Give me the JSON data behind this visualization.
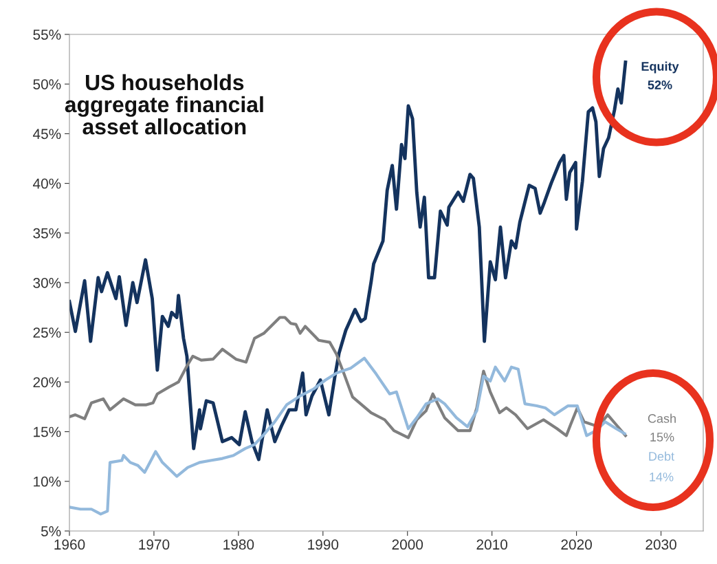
{
  "chart_data": {
    "type": "line",
    "title": "US households\naggregate financial\nasset allocation",
    "xlim": [
      1960,
      2035
    ],
    "xticks": [
      1960,
      1970,
      1980,
      1990,
      2000,
      2010,
      2020,
      2030
    ],
    "ylim": [
      5,
      55
    ],
    "yticks": [
      {
        "value": 5,
        "label": "5%"
      },
      {
        "value": 10,
        "label": "10%"
      },
      {
        "value": 15,
        "label": "15%"
      },
      {
        "value": 20,
        "label": "20%"
      },
      {
        "value": 25,
        "label": "25%"
      },
      {
        "value": 30,
        "label": "30%"
      },
      {
        "value": 35,
        "label": "35%"
      },
      {
        "value": 40,
        "label": "40%"
      },
      {
        "value": 45,
        "label": "45%"
      },
      {
        "value": 50,
        "label": "50%"
      },
      {
        "value": 55,
        "label": "55%"
      }
    ],
    "grid": false,
    "legend": false,
    "marker": "none",
    "line_style": "solid",
    "series": [
      {
        "name": "Equity",
        "color": "#14335e",
        "x": [
          1960.0,
          1960.7,
          1961.8,
          1962.5,
          1963.4,
          1963.8,
          1964.5,
          1965.5,
          1965.9,
          1966.7,
          1967.5,
          1968.0,
          1969.0,
          1969.8,
          1970.4,
          1971.0,
          1971.7,
          1972.1,
          1972.7,
          1972.9,
          1973.5,
          1973.9,
          1974.7,
          1975.4,
          1975.5,
          1976.2,
          1977.0,
          1978.1,
          1979.2,
          1980.1,
          1980.8,
          1981.6,
          1982.4,
          1983.4,
          1984.3,
          1985.1,
          1986.0,
          1986.8,
          1987.6,
          1988.0,
          1988.7,
          1989.7,
          1990.7,
          1991.4,
          1991.9,
          1992.7,
          1993.8,
          1994.5,
          1995.0,
          1995.7,
          1996.0,
          1997.1,
          1997.6,
          1998.2,
          1998.7,
          1999.3,
          1999.7,
          2000.1,
          2000.6,
          2001.1,
          2001.5,
          2002.0,
          2002.5,
          2003.2,
          2003.9,
          2004.7,
          2004.9,
          2006.0,
          2006.6,
          2007.4,
          2007.8,
          2008.5,
          2009.1,
          2009.8,
          2010.4,
          2011.0,
          2011.6,
          2012.3,
          2012.8,
          2013.3,
          2014.4,
          2015.1,
          2015.7,
          2016.2,
          2017.0,
          2018.0,
          2018.5,
          2018.8,
          2019.2,
          2019.9,
          2020.0,
          2020.7,
          2021.4,
          2021.9,
          2022.3,
          2022.7,
          2023.2,
          2023.8,
          2024.5,
          2024.9,
          2025.3,
          2025.8
        ],
        "values": [
          28.1,
          25.1,
          30.2,
          24.1,
          30.5,
          29.1,
          31.0,
          28.4,
          30.6,
          25.7,
          30.0,
          28.0,
          32.3,
          28.4,
          21.2,
          26.6,
          25.6,
          27.0,
          26.5,
          28.7,
          24.4,
          22.6,
          13.3,
          17.2,
          15.3,
          18.1,
          17.9,
          14.0,
          14.4,
          13.7,
          17.0,
          14.0,
          12.2,
          17.2,
          14.0,
          15.6,
          17.2,
          17.2,
          20.9,
          16.7,
          18.6,
          20.2,
          16.7,
          20.5,
          22.9,
          25.2,
          27.3,
          26.1,
          26.4,
          30.1,
          31.9,
          34.2,
          39.3,
          41.8,
          37.4,
          43.9,
          42.5,
          47.8,
          46.5,
          39.1,
          35.6,
          38.6,
          30.5,
          30.5,
          37.2,
          35.8,
          37.6,
          39.1,
          38.2,
          40.9,
          40.5,
          35.6,
          24.1,
          32.1,
          30.3,
          35.6,
          30.5,
          34.2,
          33.5,
          36.1,
          39.8,
          39.5,
          37.0,
          38.1,
          40.0,
          42.1,
          42.8,
          38.4,
          41.1,
          42.1,
          35.4,
          40.2,
          47.2,
          47.6,
          46.2,
          40.7,
          43.5,
          44.6,
          47.4,
          49.5,
          48.1,
          52.2
        ]
      },
      {
        "name": "Cash",
        "color": "#7f7f7f",
        "x": [
          1960.0,
          1960.7,
          1961.8,
          1962.6,
          1964.0,
          1964.8,
          1966.4,
          1967.8,
          1969.1,
          1969.9,
          1970.4,
          1971.8,
          1972.9,
          1973.9,
          1974.6,
          1975.6,
          1977.0,
          1978.1,
          1979.7,
          1980.9,
          1981.9,
          1983.0,
          1984.9,
          1985.5,
          1986.2,
          1986.8,
          1987.3,
          1987.9,
          1989.5,
          1990.8,
          1991.6,
          1992.5,
          1993.5,
          1995.7,
          1997.3,
          1998.4,
          2000.1,
          2001.1,
          2002.2,
          2003.0,
          2004.4,
          2006.0,
          2007.4,
          2008.2,
          2009.0,
          2009.8,
          2010.9,
          2011.7,
          2012.8,
          2014.2,
          2016.1,
          2017.7,
          2018.8,
          2019.3,
          2020.1,
          2020.9,
          2022.6,
          2023.7,
          2024.7,
          2025.8
        ],
        "values": [
          16.5,
          16.7,
          16.3,
          17.9,
          18.3,
          17.2,
          18.3,
          17.7,
          17.7,
          17.9,
          18.8,
          19.5,
          20.0,
          21.6,
          22.6,
          22.2,
          22.3,
          23.3,
          22.3,
          22.0,
          24.4,
          24.9,
          26.5,
          26.5,
          25.9,
          25.8,
          24.9,
          25.6,
          24.2,
          24.0,
          22.8,
          20.8,
          18.5,
          16.9,
          16.2,
          15.1,
          14.4,
          16.2,
          17.1,
          18.8,
          16.4,
          15.1,
          15.1,
          17.4,
          21.1,
          19.0,
          16.9,
          17.4,
          16.7,
          15.3,
          16.2,
          15.3,
          14.6,
          15.7,
          17.4,
          16.0,
          15.5,
          16.7,
          15.7,
          14.6
        ]
      },
      {
        "name": "Debt",
        "color": "#93b9dc",
        "x": [
          1960.0,
          1961.3,
          1962.6,
          1963.7,
          1964.5,
          1964.8,
          1966.2,
          1966.4,
          1967.2,
          1968.1,
          1968.9,
          1970.2,
          1971.0,
          1972.7,
          1974.0,
          1975.4,
          1976.7,
          1978.1,
          1979.4,
          1980.8,
          1981.9,
          1983.0,
          1984.3,
          1985.7,
          1987.3,
          1988.9,
          1990.3,
          1991.6,
          1993.3,
          1994.9,
          1996.3,
          1997.9,
          1998.7,
          2000.1,
          2001.1,
          2002.2,
          2003.6,
          2004.4,
          2005.8,
          2007.1,
          2008.2,
          2009.0,
          2009.8,
          2010.4,
          2011.5,
          2012.3,
          2013.1,
          2013.9,
          2015.3,
          2016.3,
          2017.4,
          2019.0,
          2020.1,
          2021.2,
          2022.3,
          2023.4,
          2024.7,
          2025.7
        ],
        "values": [
          7.4,
          7.2,
          7.2,
          6.7,
          7.0,
          11.9,
          12.1,
          12.6,
          11.9,
          11.6,
          10.9,
          13.0,
          11.9,
          10.5,
          11.4,
          11.9,
          12.1,
          12.3,
          12.6,
          13.3,
          13.7,
          14.7,
          16.0,
          17.7,
          18.6,
          19.3,
          20.2,
          20.9,
          21.4,
          22.4,
          20.8,
          18.8,
          19.0,
          15.3,
          16.4,
          17.8,
          18.3,
          17.8,
          16.4,
          15.5,
          17.1,
          20.6,
          20.1,
          21.5,
          20.1,
          21.5,
          21.3,
          17.8,
          17.6,
          17.4,
          16.7,
          17.6,
          17.6,
          14.6,
          15.1,
          16.0,
          15.3,
          14.8
        ]
      }
    ],
    "annotations": [
      "52%",
      "15%",
      "14%"
    ]
  }
}
